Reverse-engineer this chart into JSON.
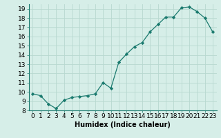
{
  "x": [
    0,
    1,
    2,
    3,
    4,
    5,
    6,
    7,
    8,
    9,
    10,
    11,
    12,
    13,
    14,
    15,
    16,
    17,
    18,
    19,
    20,
    21,
    22,
    23
  ],
  "y": [
    9.8,
    9.6,
    8.7,
    8.2,
    9.1,
    9.4,
    9.5,
    9.6,
    9.8,
    11.0,
    10.4,
    13.2,
    14.1,
    14.9,
    15.35,
    16.5,
    17.3,
    18.1,
    18.1,
    19.1,
    19.2,
    18.7,
    18.0,
    16.5
  ],
  "xlabel": "Humidex (Indice chaleur)",
  "xlim": [
    -0.5,
    23.5
  ],
  "ylim": [
    8,
    19.5
  ],
  "yticks": [
    8,
    9,
    10,
    11,
    12,
    13,
    14,
    15,
    16,
    17,
    18,
    19
  ],
  "xticks": [
    0,
    1,
    2,
    3,
    4,
    5,
    6,
    7,
    8,
    9,
    10,
    11,
    12,
    13,
    14,
    15,
    16,
    17,
    18,
    19,
    20,
    21,
    22,
    23
  ],
  "line_color": "#1a7a6e",
  "marker": "D",
  "marker_size": 2.2,
  "bg_color": "#d6eee8",
  "grid_color": "#b8d8d0",
  "xlabel_fontsize": 7,
  "tick_fontsize": 6.5
}
